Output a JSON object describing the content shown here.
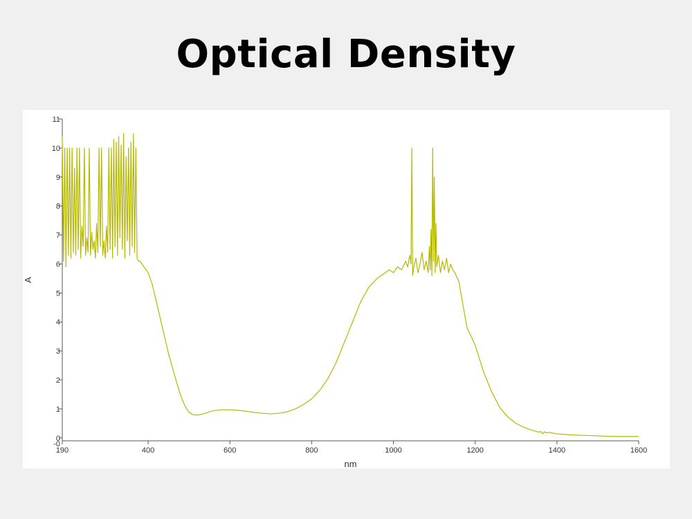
{
  "page": {
    "title": "Optical Density"
  },
  "colors": {
    "background": "#f0f0f0",
    "panel": "#ffffff",
    "axis": "#555555",
    "series": "#b5b800"
  },
  "chart_data": {
    "type": "line",
    "title": "",
    "xlabel": "nm",
    "ylabel": "A",
    "xlim": [
      190,
      1600
    ],
    "ylim": [
      -0.1,
      11
    ],
    "x_ticks": [
      190,
      400,
      600,
      800,
      1000,
      1200,
      1400,
      1600
    ],
    "y_ticks": [
      0,
      1,
      2,
      3,
      4,
      5,
      6,
      7,
      8,
      9,
      10,
      11
    ],
    "y_extra_tick_label": "-0",
    "grid": false,
    "legend": "none",
    "series": [
      {
        "x": [
          190,
          193,
          196,
          199,
          202,
          205,
          208,
          211,
          214,
          217,
          220,
          223,
          226,
          229,
          232,
          235,
          238,
          241,
          244,
          247,
          250,
          253,
          256,
          259,
          262,
          265,
          268,
          271,
          274,
          277,
          280,
          283,
          286,
          289,
          292,
          295,
          298,
          301,
          304,
          307,
          310,
          313,
          316,
          319,
          322,
          325,
          328,
          331,
          334,
          337,
          340,
          343,
          346,
          349,
          352,
          355,
          358,
          361,
          364,
          367,
          370,
          373,
          376,
          380,
          390,
          400,
          410,
          420,
          430,
          440,
          450,
          460,
          470,
          480,
          490,
          500,
          510,
          520,
          530,
          540,
          550,
          560,
          580,
          600,
          620,
          640,
          660,
          680,
          700,
          720,
          740,
          760,
          780,
          800,
          820,
          840,
          860,
          880,
          900,
          920,
          940,
          960,
          970,
          980,
          990,
          1000,
          1010,
          1020,
          1030,
          1035,
          1040,
          1043,
          1045,
          1047,
          1050,
          1055,
          1060,
          1065,
          1070,
          1075,
          1080,
          1085,
          1088,
          1090,
          1092,
          1094,
          1096,
          1098,
          1100,
          1102,
          1104,
          1106,
          1110,
          1115,
          1120,
          1125,
          1130,
          1135,
          1140,
          1145,
          1150,
          1160,
          1170,
          1180,
          1200,
          1220,
          1240,
          1260,
          1280,
          1300,
          1320,
          1340,
          1355,
          1360,
          1365,
          1370,
          1375,
          1380,
          1400,
          1420,
          1440,
          1460,
          1480,
          1500,
          1520,
          1540,
          1560,
          1580,
          1600
        ],
        "values": [
          10.4,
          6.1,
          10.0,
          5.9,
          10.0,
          6.3,
          10.0,
          6.2,
          10.0,
          6.4,
          9.3,
          6.3,
          10.0,
          6.5,
          10.0,
          6.2,
          7.3,
          6.6,
          10.0,
          6.3,
          6.9,
          6.4,
          10.0,
          6.3,
          7.1,
          6.5,
          6.8,
          6.2,
          7.4,
          6.4,
          10.0,
          6.6,
          10.0,
          6.3,
          6.8,
          6.2,
          7.3,
          6.4,
          10.0,
          6.5,
          10.0,
          6.2,
          10.3,
          6.6,
          10.2,
          6.3,
          10.4,
          6.9,
          10.1,
          6.5,
          10.5,
          6.2,
          9.7,
          6.8,
          10.0,
          6.3,
          10.2,
          6.6,
          10.5,
          6.4,
          10.0,
          6.2,
          6.1,
          6.1,
          5.9,
          5.7,
          5.3,
          4.7,
          4.1,
          3.5,
          2.9,
          2.4,
          1.9,
          1.45,
          1.1,
          0.88,
          0.8,
          0.79,
          0.81,
          0.85,
          0.9,
          0.94,
          0.97,
          0.97,
          0.95,
          0.92,
          0.88,
          0.85,
          0.83,
          0.85,
          0.9,
          1.0,
          1.15,
          1.35,
          1.65,
          2.05,
          2.6,
          3.3,
          4.0,
          4.7,
          5.2,
          5.5,
          5.6,
          5.7,
          5.8,
          5.7,
          5.9,
          5.8,
          6.1,
          5.9,
          6.3,
          6.0,
          10.0,
          5.6,
          5.9,
          6.2,
          5.7,
          6.0,
          6.4,
          5.8,
          6.1,
          5.7,
          6.6,
          5.8,
          7.2,
          5.6,
          10.0,
          6.1,
          9.0,
          5.7,
          7.4,
          5.9,
          6.3,
          5.7,
          6.1,
          5.8,
          6.2,
          5.7,
          6.0,
          5.8,
          5.7,
          5.4,
          4.6,
          3.8,
          3.2,
          2.3,
          1.6,
          1.05,
          0.72,
          0.5,
          0.36,
          0.26,
          0.2,
          0.22,
          0.15,
          0.21,
          0.17,
          0.19,
          0.14,
          0.12,
          0.1,
          0.09,
          0.08,
          0.07,
          0.06,
          0.05,
          0.05,
          0.05,
          0.05
        ]
      }
    ]
  }
}
